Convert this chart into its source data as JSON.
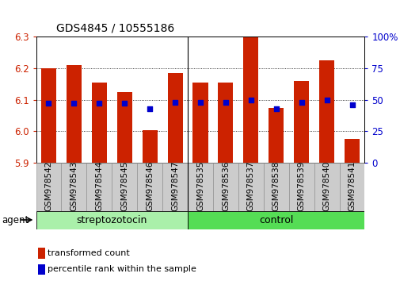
{
  "title": "GDS4845 / 10555186",
  "samples": [
    "GSM978542",
    "GSM978543",
    "GSM978544",
    "GSM978545",
    "GSM978546",
    "GSM978547",
    "GSM978535",
    "GSM978536",
    "GSM978537",
    "GSM978538",
    "GSM978539",
    "GSM978540",
    "GSM978541"
  ],
  "transformed_count": [
    6.2,
    6.21,
    6.155,
    6.125,
    6.005,
    6.185,
    6.155,
    6.155,
    6.3,
    6.075,
    6.16,
    6.225,
    5.975
  ],
  "percentile_rank": [
    47,
    47,
    47,
    47,
    43,
    48,
    48,
    48,
    50,
    43,
    48,
    50,
    46
  ],
  "ylim_left": [
    5.9,
    6.3
  ],
  "ylim_right": [
    0,
    100
  ],
  "yticks_left": [
    5.9,
    6.0,
    6.1,
    6.2,
    6.3
  ],
  "yticks_right": [
    0,
    25,
    50,
    75,
    100
  ],
  "ytick_labels_right": [
    "0",
    "25",
    "50",
    "75",
    "100%"
  ],
  "bar_color": "#cc2200",
  "dot_color": "#0000cc",
  "group_labels": [
    "streptozotocin",
    "control"
  ],
  "group_sizes": [
    6,
    7
  ],
  "agent_label": "agent",
  "legend_bar": "transformed count",
  "legend_dot": "percentile rank within the sample",
  "tick_label_color_left": "#cc2200",
  "tick_label_color_right": "#0000cc",
  "title_fontsize": 10,
  "label_fontsize": 7.5,
  "group_fontsize": 9,
  "legend_fontsize": 8
}
